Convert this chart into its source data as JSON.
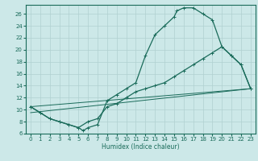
{
  "xlabel": "Humidex (Indice chaleur)",
  "xlim": [
    -0.5,
    23.5
  ],
  "ylim": [
    6,
    27.5
  ],
  "xticks": [
    0,
    1,
    2,
    3,
    4,
    5,
    6,
    7,
    8,
    9,
    10,
    11,
    12,
    13,
    14,
    15,
    16,
    17,
    18,
    19,
    20,
    21,
    22,
    23
  ],
  "yticks": [
    6,
    8,
    10,
    12,
    14,
    16,
    18,
    20,
    22,
    24,
    26
  ],
  "bg_color": "#cce8e8",
  "line_color": "#1a6b5a",
  "grid_color": "#b0d0d0",
  "line1_x": [
    0,
    1,
    2,
    3,
    4,
    5,
    5.5,
    6,
    7,
    8,
    9,
    10,
    11,
    12,
    13,
    14,
    15,
    15.3,
    16,
    17,
    18,
    19,
    20,
    21,
    22,
    23
  ],
  "line1_y": [
    10.5,
    9.5,
    8.5,
    8.0,
    7.5,
    7.0,
    6.5,
    7.0,
    7.5,
    11.5,
    12.5,
    13.5,
    14.5,
    19.0,
    22.5,
    24.0,
    25.5,
    26.5,
    27.0,
    27.0,
    26.0,
    25.0,
    20.5,
    19.0,
    17.5,
    13.5
  ],
  "line2_x": [
    0,
    1,
    2,
    3,
    4,
    5,
    6,
    7,
    8,
    9,
    10,
    11,
    12,
    13,
    14,
    15,
    16,
    17,
    18,
    19,
    20,
    21,
    22,
    23
  ],
  "line2_y": [
    10.5,
    9.5,
    8.5,
    8.0,
    7.5,
    7.0,
    8.0,
    8.5,
    10.5,
    11.0,
    12.0,
    13.0,
    13.5,
    14.0,
    14.5,
    15.5,
    16.5,
    17.5,
    18.5,
    19.5,
    20.5,
    19.0,
    17.5,
    13.5
  ],
  "line3_x": [
    0,
    23
  ],
  "line3_y": [
    9.5,
    13.5
  ],
  "line4_x": [
    0,
    23
  ],
  "line4_y": [
    10.5,
    13.5
  ]
}
